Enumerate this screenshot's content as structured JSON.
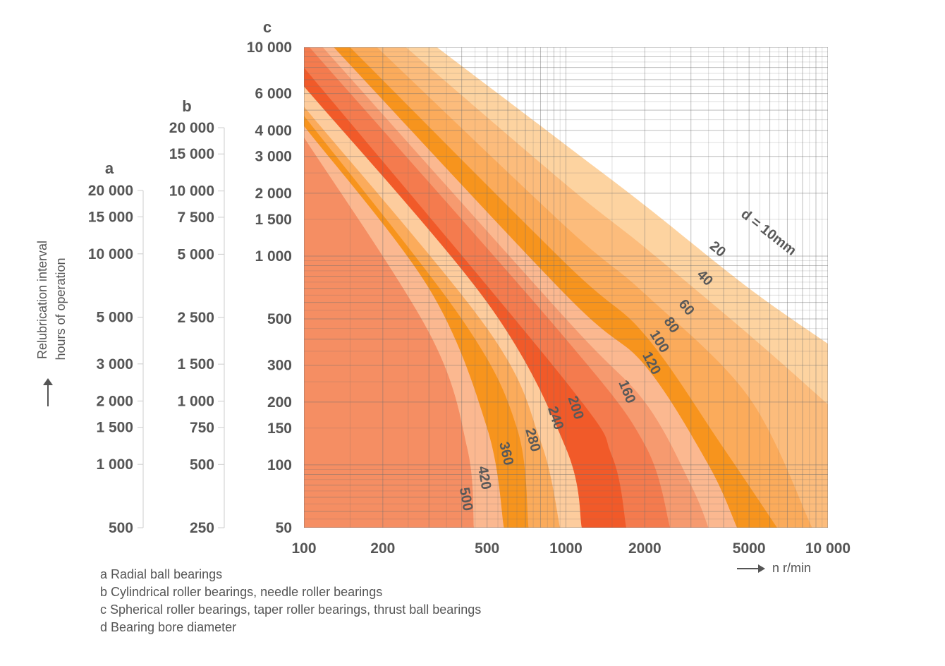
{
  "chart_data": {
    "type": "area",
    "title": "",
    "xlabel": "n r/min",
    "ylabel_lines": [
      "Relubrication interval",
      "hours of operation"
    ],
    "x_scale": "log",
    "xlim": [
      100,
      10000
    ],
    "x_ticks": [
      {
        "value": 100,
        "label": "100"
      },
      {
        "value": 200,
        "label": "200"
      },
      {
        "value": 500,
        "label": "500"
      },
      {
        "value": 1000,
        "label": "1000"
      },
      {
        "value": 2000,
        "label": "2000"
      },
      {
        "value": 5000,
        "label": "5000"
      },
      {
        "value": 10000,
        "label": "10 000"
      }
    ],
    "y_scales": [
      {
        "key": "c",
        "letter": "c",
        "ylim": [
          50,
          10000
        ],
        "ticks": [
          {
            "value": 10000,
            "label": "10 000"
          },
          {
            "value": 6000,
            "label": "6 000"
          },
          {
            "value": 4000,
            "label": "4 000"
          },
          {
            "value": 3000,
            "label": "3 000"
          },
          {
            "value": 2000,
            "label": "2 000"
          },
          {
            "value": 1500,
            "label": "1 500"
          },
          {
            "value": 1000,
            "label": "1 000"
          },
          {
            "value": 500,
            "label": "500"
          },
          {
            "value": 300,
            "label": "300"
          },
          {
            "value": 200,
            "label": "200"
          },
          {
            "value": 150,
            "label": "150"
          },
          {
            "value": 100,
            "label": "100"
          },
          {
            "value": 50,
            "label": "50"
          }
        ]
      },
      {
        "key": "b",
        "letter": "b",
        "ylim": [
          250,
          20000
        ],
        "ticks": [
          {
            "value": 20000,
            "label": "20 000"
          },
          {
            "value": 15000,
            "label": "15 000"
          },
          {
            "value": 10000,
            "label": "10 000"
          },
          {
            "value": 7500,
            "label": "7 500"
          },
          {
            "value": 5000,
            "label": "5 000"
          },
          {
            "value": 2500,
            "label": "2 500"
          },
          {
            "value": 1500,
            "label": "1 500"
          },
          {
            "value": 1000,
            "label": "1 000"
          },
          {
            "value": 750,
            "label": "750"
          },
          {
            "value": 500,
            "label": "500"
          },
          {
            "value": 250,
            "label": "250"
          }
        ]
      },
      {
        "key": "a",
        "letter": "a",
        "ylim": [
          500,
          20000
        ],
        "ticks": [
          {
            "value": 20000,
            "label": "20 000"
          },
          {
            "value": 15000,
            "label": "15 000"
          },
          {
            "value": 10000,
            "label": "10 000"
          },
          {
            "value": 5000,
            "label": "5 000"
          },
          {
            "value": 3000,
            "label": "3 000"
          },
          {
            "value": 2000,
            "label": "2 000"
          },
          {
            "value": 1500,
            "label": "1 500"
          },
          {
            "value": 1000,
            "label": "1 000"
          },
          {
            "value": 500,
            "label": "500"
          }
        ]
      }
    ],
    "series": [
      {
        "name": "d = 10mm",
        "label": "d = 10mm",
        "color": "#fdd3a0",
        "label_at": {
          "n": 5800,
          "h": 1250
        },
        "label_rot": 38,
        "points": [
          {
            "n": 322,
            "h": 10000
          },
          {
            "n": 1000,
            "h": 3400
          },
          {
            "n": 2000,
            "h": 1750
          },
          {
            "n": 5000,
            "h": 700
          },
          {
            "n": 10000,
            "h": 380
          }
        ]
      },
      {
        "name": "20",
        "label": "20",
        "color": "#fcbc7c",
        "label_at": {
          "n": 3700,
          "h": 1040
        },
        "label_rot": 40,
        "points": [
          {
            "n": 245,
            "h": 10000
          },
          {
            "n": 1000,
            "h": 2200
          },
          {
            "n": 2000,
            "h": 1100
          },
          {
            "n": 5000,
            "h": 420
          },
          {
            "n": 10000,
            "h": 195
          }
        ]
      },
      {
        "name": "40",
        "label": "40",
        "color": "#fbab5b",
        "label_at": {
          "n": 3300,
          "h": 760
        },
        "label_rot": 45,
        "points": [
          {
            "n": 190,
            "h": 10000
          },
          {
            "n": 1000,
            "h": 1380
          },
          {
            "n": 2000,
            "h": 660
          },
          {
            "n": 5000,
            "h": 210
          },
          {
            "n": 8700,
            "h": 50
          }
        ]
      },
      {
        "name": "60",
        "label": "60",
        "color": "#f7941d",
        "label_at": {
          "n": 2800,
          "h": 550
        },
        "label_rot": 50,
        "points": [
          {
            "n": 150,
            "h": 10000
          },
          {
            "n": 1000,
            "h": 920
          },
          {
            "n": 2000,
            "h": 420
          },
          {
            "n": 4000,
            "h": 120
          },
          {
            "n": 6400,
            "h": 50
          }
        ]
      },
      {
        "name": "80",
        "label": "80",
        "color": "#fbb890",
        "label_at": {
          "n": 2450,
          "h": 455
        },
        "label_rot": 55,
        "points": [
          {
            "n": 130,
            "h": 10000
          },
          {
            "n": 1000,
            "h": 650
          },
          {
            "n": 2000,
            "h": 300
          },
          {
            "n": 3500,
            "h": 100
          },
          {
            "n": 4500,
            "h": 50
          }
        ]
      },
      {
        "name": "100",
        "label": "100",
        "color": "#f69a6f",
        "label_at": {
          "n": 2200,
          "h": 380
        },
        "label_rot": 58,
        "points": [
          {
            "n": 118,
            "h": 10000
          },
          {
            "n": 1000,
            "h": 500
          },
          {
            "n": 2000,
            "h": 200
          },
          {
            "n": 3000,
            "h": 80
          },
          {
            "n": 3500,
            "h": 50
          }
        ]
      },
      {
        "name": "120",
        "label": "120",
        "color": "#f47b4e",
        "label_at": {
          "n": 2050,
          "h": 300
        },
        "label_rot": 62,
        "points": [
          {
            "n": 105,
            "h": 10000
          },
          {
            "n": 1000,
            "h": 400
          },
          {
            "n": 2000,
            "h": 125
          },
          {
            "n": 2500,
            "h": 50
          }
        ]
      },
      {
        "name": "160",
        "label": "160",
        "color": "#f15a29",
        "label_at": {
          "n": 1650,
          "h": 220
        },
        "label_rot": 68,
        "points": [
          {
            "n": 100,
            "h": 8000
          },
          {
            "n": 1000,
            "h": 250
          },
          {
            "n": 1500,
            "h": 110
          },
          {
            "n": 1700,
            "h": 50
          }
        ]
      },
      {
        "name": "200",
        "label": "200",
        "color": "#fdcc9d",
        "label_at": {
          "n": 1050,
          "h": 185
        },
        "label_rot": 72,
        "points": [
          {
            "n": 100,
            "h": 6500
          },
          {
            "n": 500,
            "h": 600
          },
          {
            "n": 1000,
            "h": 120
          },
          {
            "n": 1150,
            "h": 50
          }
        ]
      },
      {
        "name": "240",
        "label": "240",
        "color": "#fbab5b",
        "label_at": {
          "n": 880,
          "h": 165
        },
        "label_rot": 72,
        "points": [
          {
            "n": 100,
            "h": 5200
          },
          {
            "n": 500,
            "h": 450
          },
          {
            "n": 800,
            "h": 130
          },
          {
            "n": 950,
            "h": 50
          }
        ]
      },
      {
        "name": "280",
        "label": "280",
        "color": "#f7941d",
        "label_at": {
          "n": 720,
          "h": 130
        },
        "label_rot": 75,
        "points": [
          {
            "n": 100,
            "h": 4700
          },
          {
            "n": 400,
            "h": 500
          },
          {
            "n": 650,
            "h": 150
          },
          {
            "n": 720,
            "h": 50
          }
        ]
      },
      {
        "name": "360",
        "label": "360",
        "color": "#fbb890",
        "label_at": {
          "n": 570,
          "h": 112
        },
        "label_rot": 77,
        "points": [
          {
            "n": 100,
            "h": 4200
          },
          {
            "n": 300,
            "h": 700
          },
          {
            "n": 500,
            "h": 150
          },
          {
            "n": 580,
            "h": 50
          }
        ]
      },
      {
        "name": "420",
        "label": "420",
        "color": "#f58e63",
        "label_at": {
          "n": 470,
          "h": 86
        },
        "label_rot": 80,
        "points": [
          {
            "n": 100,
            "h": 3700
          },
          {
            "n": 300,
            "h": 430
          },
          {
            "n": 420,
            "h": 120
          },
          {
            "n": 445,
            "h": 50
          }
        ]
      },
      {
        "name": "500",
        "label": "500",
        "color": "#f58e63",
        "label_at": {
          "n": 400,
          "h": 68
        },
        "label_rot": 80,
        "points": [
          {
            "n": 100,
            "h": 3700
          },
          {
            "n": 300,
            "h": 430
          },
          {
            "n": 420,
            "h": 120
          },
          {
            "n": 445,
            "h": 50
          }
        ]
      }
    ],
    "legend": [
      "a Radial ball bearings",
      "b Cylindrical roller bearings, needle roller bearings",
      "c Spherical roller bearings, taper roller bearings, thrust ball bearings",
      "d Bearing bore diameter"
    ],
    "grid": true
  }
}
